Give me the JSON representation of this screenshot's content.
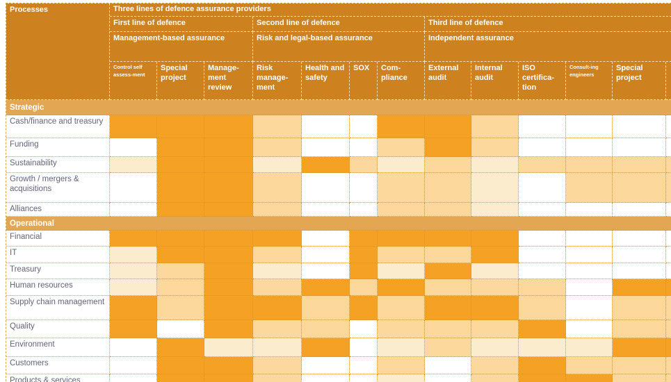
{
  "palette": {
    "header_bg": "#ce811f",
    "band_bg": "#e3a754",
    "cell_dark": "#f5a224",
    "cell_light": "#fcd89c",
    "cell_pale": "#fbeccd",
    "cell_white": "#ffffff",
    "grid_line": "#e0992d",
    "label_text": "#63637a"
  },
  "chart_data": {
    "type": "heatmap",
    "title": "Three lines of defence assurance providers",
    "row_header": "Processes",
    "col_groups": [
      {
        "line": "First line of defence",
        "assurance": "Management-based assurance",
        "span": 3
      },
      {
        "line": "Second line of defence",
        "assurance": "Risk and legal-based assurance",
        "span": 4
      },
      {
        "line": "Third line of defence",
        "assurance": "Independent assurance",
        "span": 5
      }
    ],
    "columns": [
      "Control self assess-ment",
      "Special project",
      "Manage-ment review",
      "Risk manage-ment",
      "Health and safety",
      "SOX",
      "Com-pliance",
      "External audit",
      "Internal audit",
      "ISO certifica-tion",
      "Consult-ing engineers",
      "Special project"
    ],
    "value_legend": {
      "d": "dark orange (high assurance activity)",
      "l": "light orange (medium assurance activity)",
      "v": "pale orange (low assurance activity)",
      "w": "white (none)",
      "p": "light orange with dotted pattern"
    },
    "sections": [
      {
        "title": "Strategic",
        "rows": [
          {
            "label": "Cash/finance and treasury",
            "cells": [
              "d",
              "d",
              "d",
              "l",
              "w",
              "w",
              "d",
              "d",
              "l",
              "w",
              "w",
              "w"
            ]
          },
          {
            "label": "Funding",
            "cells": [
              "w",
              "d",
              "d",
              "l",
              "w",
              "w",
              "l",
              "d",
              "l",
              "w",
              "w",
              "w"
            ]
          },
          {
            "label": "Sustainability",
            "cells": [
              "v",
              "d",
              "d",
              "v",
              "d",
              "l",
              "v",
              "l",
              "v",
              "l",
              "l",
              "l"
            ]
          },
          {
            "label": "Growth / mergers & acquisitions",
            "cells": [
              "w",
              "d",
              "d",
              "l",
              "w",
              "w",
              "l",
              "l",
              "v",
              "w",
              "p",
              "l"
            ]
          },
          {
            "label": "Alliances",
            "cells": [
              "w",
              "d",
              "d",
              "l",
              "w",
              "w",
              "l",
              "l",
              "v",
              "w",
              "w",
              "w"
            ]
          }
        ]
      },
      {
        "title": "Operational",
        "rows": [
          {
            "label": "Financial",
            "cells": [
              "d",
              "d",
              "d",
              "d",
              "w",
              "d",
              "d",
              "d",
              "d",
              "w",
              "w",
              "w"
            ]
          },
          {
            "label": "IT",
            "cells": [
              "v",
              "d",
              "d",
              "l",
              "w",
              "d",
              "l",
              "l",
              "d",
              "w",
              "w",
              "w"
            ]
          },
          {
            "label": "Treasury",
            "cells": [
              "v",
              "l",
              "d",
              "v",
              "w",
              "d",
              "v",
              "d",
              "v",
              "w",
              "w",
              "w"
            ]
          },
          {
            "label": "Human resources",
            "cells": [
              "v",
              "l",
              "d",
              "l",
              "d",
              "l",
              "d",
              "l",
              "l",
              "l",
              "w",
              "d"
            ]
          },
          {
            "label": "Supply chain management",
            "cells": [
              "d",
              "l",
              "d",
              "d",
              "l",
              "d",
              "l",
              "d",
              "d",
              "l",
              "w",
              "l"
            ]
          },
          {
            "label": "Quality",
            "cells": [
              "d",
              "w",
              "d",
              "l",
              "l",
              "w",
              "l",
              "l",
              "l",
              "d",
              "w",
              "l"
            ]
          },
          {
            "label": "Environment",
            "cells": [
              "w",
              "d",
              "v",
              "v",
              "d",
              "w",
              "v",
              "l",
              "v",
              "v",
              "v",
              "d"
            ]
          },
          {
            "label": "Customers",
            "cells": [
              "w",
              "d",
              "d",
              "l",
              "w",
              "w",
              "l",
              "w",
              "l",
              "d",
              "l",
              "l"
            ]
          },
          {
            "label": "Products & services",
            "cells": [
              "w",
              "d",
              "d",
              "l",
              "w",
              "w",
              "v",
              "w",
              "l",
              "d",
              "d",
              "l"
            ]
          }
        ]
      }
    ]
  }
}
